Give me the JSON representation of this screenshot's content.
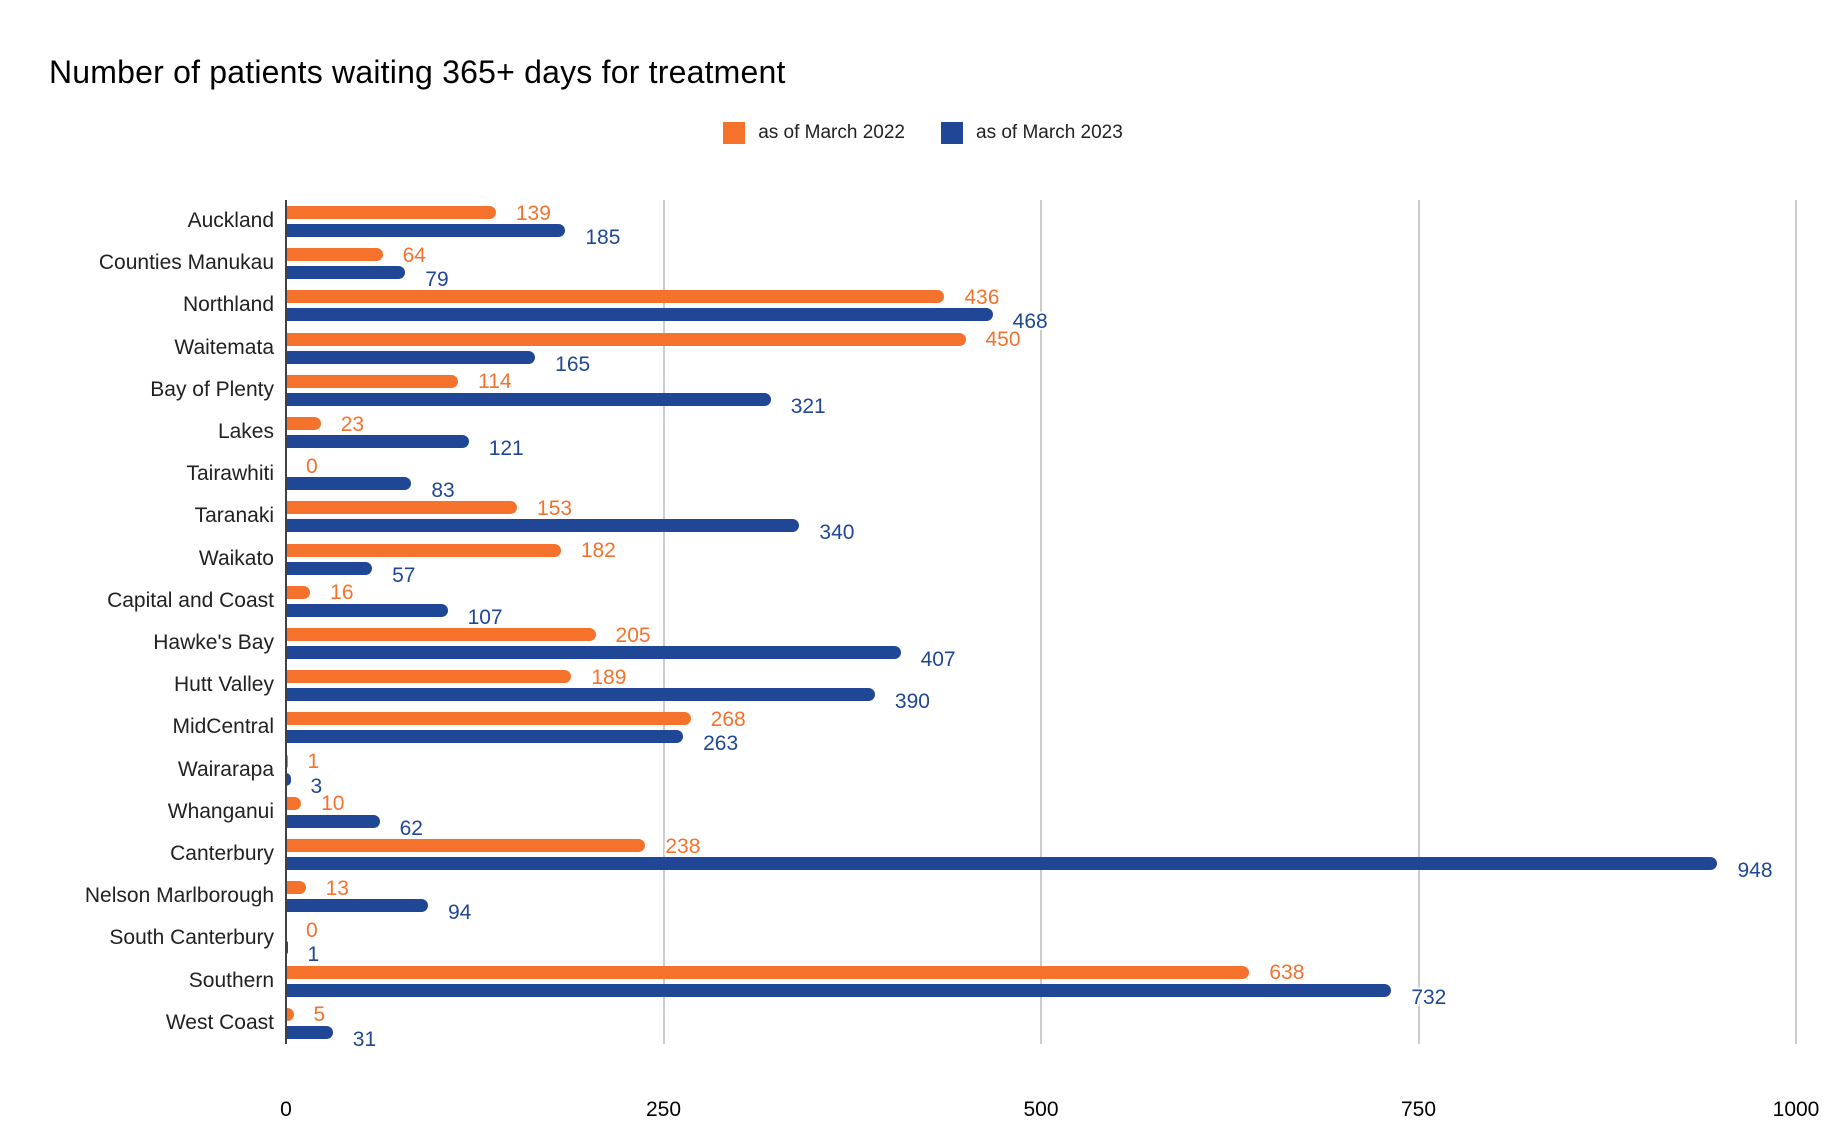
{
  "title": "Number of patients waiting 365+ days for treatment",
  "colors": {
    "series_2022": "#f5722c",
    "series_2023": "#1f4795",
    "gridline": "#cccccc",
    "axis_line": "#424242",
    "text": "#212121"
  },
  "chart_data": {
    "type": "bar",
    "orientation": "horizontal",
    "title": "Number of patients waiting 365+ days for treatment",
    "categories": [
      "Auckland",
      "Counties Manukau",
      "Northland",
      "Waitemata",
      "Bay of Plenty",
      "Lakes",
      "Tairawhiti",
      "Taranaki",
      "Waikato",
      "Capital and Coast",
      "Hawke's Bay",
      "Hutt Valley",
      "MidCentral",
      "Wairarapa",
      "Whanganui",
      "Canterbury",
      "Nelson Marlborough",
      "South Canterbury",
      "Southern",
      "West Coast"
    ],
    "series": [
      {
        "name": "as of March 2022",
        "color": "#f5722c",
        "values": [
          139,
          64,
          436,
          450,
          114,
          23,
          0,
          153,
          182,
          16,
          205,
          189,
          268,
          1,
          10,
          238,
          13,
          0,
          638,
          5
        ]
      },
      {
        "name": "as of March 2023",
        "color": "#1f4795",
        "values": [
          185,
          79,
          468,
          165,
          321,
          121,
          83,
          340,
          57,
          107,
          407,
          390,
          263,
          3,
          62,
          948,
          94,
          1,
          732,
          31
        ]
      }
    ],
    "xlabel": "",
    "ylabel": "",
    "xlim": [
      0,
      1000
    ],
    "xticks": [
      0,
      250,
      500,
      750,
      1000
    ],
    "grid": "vertical",
    "legend_position": "top",
    "value_labels": true
  }
}
